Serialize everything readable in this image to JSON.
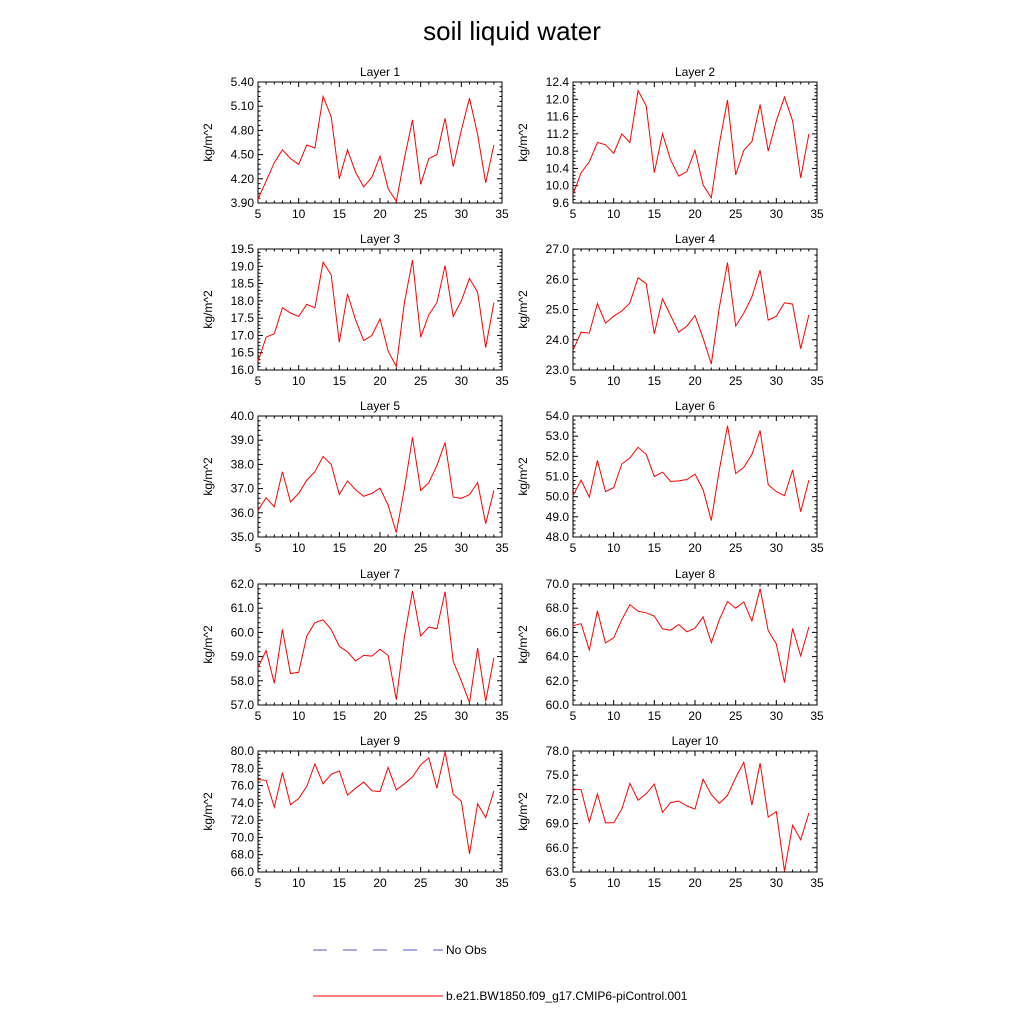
{
  "figure": {
    "title": "soil liquid water"
  },
  "legend": {
    "entries": [
      {
        "label": "No Obs",
        "color": "#5555cc",
        "style": "dashed"
      },
      {
        "label": "b.e21.BW1850.f09_g17.CMIP6-piControl.001",
        "color": "#ff0000",
        "style": "solid"
      }
    ]
  },
  "chart_data": [
    {
      "type": "line",
      "title": "Layer 1",
      "ylabel": "kg/m^2",
      "xlim": [
        5,
        35
      ],
      "ylim": [
        3.9,
        5.4
      ],
      "xticks": [
        "5",
        "10",
        "15",
        "20",
        "25",
        "30",
        "35"
      ],
      "yticks": [
        "3.90",
        "4.20",
        "4.50",
        "4.80",
        "5.10",
        "5.40"
      ],
      "series": [
        {
          "color": "#ff0000",
          "x": [
            5,
            6,
            7,
            8,
            9,
            10,
            11,
            12,
            13,
            14,
            15,
            16,
            17,
            18,
            19,
            20,
            21,
            22,
            23,
            24,
            25,
            26,
            27,
            28,
            29,
            30,
            31,
            32,
            33,
            34
          ],
          "values": [
            3.95,
            4.17,
            4.4,
            4.56,
            4.45,
            4.38,
            4.62,
            4.58,
            5.22,
            4.97,
            4.2,
            4.56,
            4.28,
            4.1,
            4.22,
            4.48,
            4.08,
            3.92,
            4.45,
            4.93,
            4.13,
            4.45,
            4.5,
            4.95,
            4.35,
            4.8,
            5.2,
            4.75,
            4.15,
            4.62
          ]
        }
      ]
    },
    {
      "type": "line",
      "title": "Layer 2",
      "ylabel": "kg/m^2",
      "xlim": [
        5,
        35
      ],
      "ylim": [
        9.6,
        12.4
      ],
      "xticks": [
        "5",
        "10",
        "15",
        "20",
        "25",
        "30",
        "35"
      ],
      "yticks": [
        "9.6",
        "10.0",
        "10.4",
        "10.8",
        "11.2",
        "11.6",
        "12.0",
        "12.4"
      ],
      "series": [
        {
          "color": "#ff0000",
          "x": [
            5,
            6,
            7,
            8,
            9,
            10,
            11,
            12,
            13,
            14,
            15,
            16,
            17,
            18,
            19,
            20,
            21,
            22,
            23,
            24,
            25,
            26,
            27,
            28,
            29,
            30,
            31,
            32,
            33,
            34
          ],
          "values": [
            9.8,
            10.3,
            10.55,
            11.0,
            10.95,
            10.75,
            11.2,
            11.0,
            12.2,
            11.85,
            10.3,
            11.2,
            10.6,
            10.22,
            10.33,
            10.82,
            10.02,
            9.72,
            10.98,
            11.98,
            10.25,
            10.82,
            11.02,
            11.88,
            10.8,
            11.5,
            12.05,
            11.5,
            10.18,
            11.2
          ]
        }
      ]
    },
    {
      "type": "line",
      "title": "Layer 3",
      "ylabel": "kg/m^2",
      "xlim": [
        5,
        35
      ],
      "ylim": [
        16.0,
        19.5
      ],
      "xticks": [
        "5",
        "10",
        "15",
        "20",
        "25",
        "30",
        "35"
      ],
      "yticks": [
        "16.0",
        "16.5",
        "17.0",
        "17.5",
        "18.0",
        "18.5",
        "19.0",
        "19.5"
      ],
      "series": [
        {
          "color": "#ff0000",
          "x": [
            5,
            6,
            7,
            8,
            9,
            10,
            11,
            12,
            13,
            14,
            15,
            16,
            17,
            18,
            19,
            20,
            21,
            22,
            23,
            24,
            25,
            26,
            27,
            28,
            29,
            30,
            31,
            32,
            33,
            34
          ],
          "values": [
            16.25,
            16.95,
            17.05,
            17.8,
            17.65,
            17.55,
            17.9,
            17.8,
            19.12,
            18.75,
            16.8,
            18.2,
            17.45,
            16.85,
            17.0,
            17.48,
            16.55,
            16.1,
            17.95,
            19.18,
            16.95,
            17.6,
            17.95,
            19.02,
            17.55,
            18.0,
            18.65,
            18.25,
            16.65,
            17.95
          ]
        }
      ]
    },
    {
      "type": "line",
      "title": "Layer 4",
      "ylabel": "kg/m^2",
      "xlim": [
        5,
        35
      ],
      "ylim": [
        23.0,
        27.0
      ],
      "xticks": [
        "5",
        "10",
        "15",
        "20",
        "25",
        "30",
        "35"
      ],
      "yticks": [
        "23.0",
        "24.0",
        "25.0",
        "26.0",
        "27.0"
      ],
      "series": [
        {
          "color": "#ff0000",
          "x": [
            5,
            6,
            7,
            8,
            9,
            10,
            11,
            12,
            13,
            14,
            15,
            16,
            17,
            18,
            19,
            20,
            21,
            22,
            23,
            24,
            25,
            26,
            27,
            28,
            29,
            30,
            31,
            32,
            33,
            34
          ],
          "values": [
            23.65,
            24.25,
            24.22,
            25.2,
            24.55,
            24.78,
            24.95,
            25.22,
            26.05,
            25.85,
            24.2,
            25.35,
            24.8,
            24.25,
            24.45,
            24.8,
            24.05,
            23.2,
            25.08,
            26.55,
            24.45,
            24.88,
            25.42,
            26.3,
            24.65,
            24.78,
            25.22,
            25.18,
            23.7,
            24.82
          ]
        }
      ]
    },
    {
      "type": "line",
      "title": "Layer 5",
      "ylabel": "kg/m^2",
      "xlim": [
        5,
        35
      ],
      "ylim": [
        35.0,
        40.0
      ],
      "xticks": [
        "5",
        "10",
        "15",
        "20",
        "25",
        "30",
        "35"
      ],
      "yticks": [
        "35.0",
        "36.0",
        "37.0",
        "38.0",
        "39.0",
        "40.0"
      ],
      "series": [
        {
          "color": "#ff0000",
          "x": [
            5,
            6,
            7,
            8,
            9,
            10,
            11,
            12,
            13,
            14,
            15,
            16,
            17,
            18,
            19,
            20,
            21,
            22,
            23,
            24,
            25,
            26,
            27,
            28,
            29,
            30,
            31,
            32,
            33,
            34
          ],
          "values": [
            36.1,
            36.62,
            36.25,
            37.7,
            36.45,
            36.8,
            37.35,
            37.7,
            38.33,
            38.0,
            36.75,
            37.32,
            36.95,
            36.68,
            36.8,
            37.02,
            36.32,
            35.18,
            37.0,
            39.12,
            36.92,
            37.25,
            37.95,
            38.9,
            36.65,
            36.6,
            36.75,
            37.25,
            35.55,
            36.92
          ]
        }
      ]
    },
    {
      "type": "line",
      "title": "Layer 6",
      "ylabel": "kg/m^2",
      "xlim": [
        5,
        35
      ],
      "ylim": [
        48.0,
        54.0
      ],
      "xticks": [
        "5",
        "10",
        "15",
        "20",
        "25",
        "30",
        "35"
      ],
      "yticks": [
        "48.0",
        "49.0",
        "50.0",
        "51.0",
        "52.0",
        "53.0",
        "54.0"
      ],
      "series": [
        {
          "color": "#ff0000",
          "x": [
            5,
            6,
            7,
            8,
            9,
            10,
            11,
            12,
            13,
            14,
            15,
            16,
            17,
            18,
            19,
            20,
            21,
            22,
            23,
            24,
            25,
            26,
            27,
            28,
            29,
            30,
            31,
            32,
            33,
            34
          ],
          "values": [
            50.05,
            50.82,
            49.98,
            51.8,
            50.25,
            50.45,
            51.62,
            51.92,
            52.45,
            52.1,
            51.0,
            51.22,
            50.75,
            50.78,
            50.85,
            51.12,
            50.35,
            48.82,
            51.35,
            53.52,
            51.15,
            51.45,
            52.1,
            53.28,
            50.6,
            50.25,
            50.05,
            51.32,
            49.25,
            50.82
          ]
        }
      ]
    },
    {
      "type": "line",
      "title": "Layer 7",
      "ylabel": "kg/m^2",
      "xlim": [
        5,
        35
      ],
      "ylim": [
        57.0,
        62.0
      ],
      "xticks": [
        "5",
        "10",
        "15",
        "20",
        "25",
        "30",
        "35"
      ],
      "yticks": [
        "57.0",
        "58.0",
        "59.0",
        "60.0",
        "61.0",
        "62.0"
      ],
      "series": [
        {
          "color": "#ff0000",
          "x": [
            5,
            6,
            7,
            8,
            9,
            10,
            11,
            12,
            13,
            14,
            15,
            16,
            17,
            18,
            19,
            20,
            21,
            22,
            23,
            24,
            25,
            26,
            27,
            28,
            29,
            30,
            31,
            32,
            33,
            34
          ],
          "values": [
            58.55,
            59.25,
            57.9,
            60.12,
            58.3,
            58.35,
            59.85,
            60.4,
            60.52,
            60.12,
            59.42,
            59.2,
            58.82,
            59.05,
            59.02,
            59.3,
            59.05,
            57.22,
            59.82,
            61.72,
            59.85,
            60.22,
            60.15,
            61.68,
            58.8,
            58.0,
            57.1,
            59.35,
            57.15,
            58.95
          ]
        }
      ]
    },
    {
      "type": "line",
      "title": "Layer 8",
      "ylabel": "kg/m^2",
      "xlim": [
        5,
        35
      ],
      "ylim": [
        60.0,
        70.0
      ],
      "xticks": [
        "5",
        "10",
        "15",
        "20",
        "25",
        "30",
        "35"
      ],
      "yticks": [
        "60.0",
        "62.0",
        "64.0",
        "66.0",
        "68.0",
        "70.0"
      ],
      "series": [
        {
          "color": "#ff0000",
          "x": [
            5,
            6,
            7,
            8,
            9,
            10,
            11,
            12,
            13,
            14,
            15,
            16,
            17,
            18,
            19,
            20,
            21,
            22,
            23,
            24,
            25,
            26,
            27,
            28,
            29,
            30,
            31,
            32,
            33,
            34
          ],
          "values": [
            66.55,
            66.72,
            64.55,
            67.78,
            65.12,
            65.55,
            67.05,
            68.3,
            67.75,
            67.62,
            67.35,
            66.3,
            66.18,
            66.65,
            66.05,
            66.35,
            67.28,
            65.15,
            67.05,
            68.55,
            68.0,
            68.52,
            66.95,
            69.62,
            66.15,
            65.05,
            61.85,
            66.32,
            64.05,
            66.45
          ]
        }
      ]
    },
    {
      "type": "line",
      "title": "Layer 9",
      "ylabel": "kg/m^2",
      "xlim": [
        5,
        35
      ],
      "ylim": [
        66.0,
        80.0
      ],
      "xticks": [
        "5",
        "10",
        "15",
        "20",
        "25",
        "30",
        "35"
      ],
      "yticks": [
        "66.0",
        "68.0",
        "70.0",
        "72.0",
        "74.0",
        "76.0",
        "78.0",
        "80.0"
      ],
      "series": [
        {
          "color": "#ff0000",
          "x": [
            5,
            6,
            7,
            8,
            9,
            10,
            11,
            12,
            13,
            14,
            15,
            16,
            17,
            18,
            19,
            20,
            21,
            22,
            23,
            24,
            25,
            26,
            27,
            28,
            29,
            30,
            31,
            32,
            33,
            34
          ],
          "values": [
            76.7,
            76.6,
            73.5,
            77.5,
            73.8,
            74.5,
            75.9,
            78.5,
            76.2,
            77.3,
            77.7,
            74.9,
            75.7,
            76.4,
            75.4,
            75.3,
            78.1,
            75.5,
            76.2,
            77.0,
            78.4,
            79.2,
            75.7,
            79.9,
            75.0,
            74.2,
            68.1,
            73.9,
            72.3,
            75.4
          ]
        }
      ]
    },
    {
      "type": "line",
      "title": "Layer 10",
      "ylabel": "kg/m^2",
      "xlim": [
        5,
        35
      ],
      "ylim": [
        63.0,
        78.0
      ],
      "xticks": [
        "5",
        "10",
        "15",
        "20",
        "25",
        "30",
        "35"
      ],
      "yticks": [
        "63.0",
        "66.0",
        "69.0",
        "72.0",
        "75.0",
        "78.0"
      ],
      "series": [
        {
          "color": "#ff0000",
          "x": [
            5,
            6,
            7,
            8,
            9,
            10,
            11,
            12,
            13,
            14,
            15,
            16,
            17,
            18,
            19,
            20,
            21,
            22,
            23,
            24,
            25,
            26,
            27,
            28,
            29,
            30,
            31,
            32,
            33,
            34
          ],
          "values": [
            73.3,
            73.2,
            69.2,
            72.7,
            69.1,
            69.1,
            70.8,
            74.0,
            71.9,
            72.7,
            73.9,
            70.4,
            71.6,
            71.8,
            71.2,
            70.8,
            74.5,
            72.6,
            71.5,
            72.5,
            74.7,
            76.6,
            71.3,
            76.5,
            69.8,
            70.5,
            63.1,
            68.8,
            67.0,
            70.3
          ]
        }
      ]
    }
  ]
}
